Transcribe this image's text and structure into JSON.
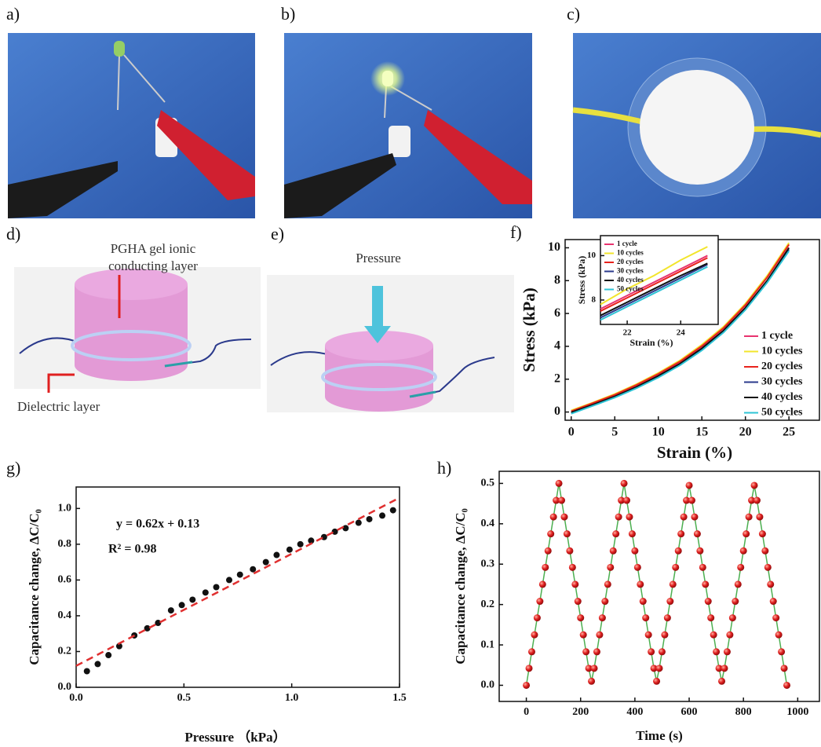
{
  "panel_labels": [
    "a)",
    "b)",
    "c)",
    "d)",
    "e)",
    "f)",
    "g)",
    "h)"
  ],
  "diagrams": {
    "d": {
      "labels": [
        "PGHA gel ionic",
        "conducting layer",
        "Dielectric layer"
      ]
    },
    "e": {
      "labels": [
        "Pressure"
      ]
    }
  },
  "chart_data": [
    {
      "type": "line",
      "xlabel": "Strain (%)",
      "ylabel": "Stress (kPa)",
      "x": [
        0,
        2.5,
        5,
        7.5,
        10,
        12.5,
        15,
        17.5,
        20,
        22.5,
        25
      ],
      "xlim": [
        -0.7,
        28.5
      ],
      "ylim": [
        -0.5,
        10.5
      ],
      "xticks": [
        0,
        5,
        10,
        15,
        20,
        25
      ],
      "yticks": [
        0,
        2,
        4,
        6,
        8,
        10
      ],
      "legend": "right",
      "series": [
        {
          "name": "1 cycle",
          "color": "#e8336f",
          "values": [
            0.05,
            0.52,
            1.02,
            1.63,
            2.3,
            3.05,
            4.0,
            5.1,
            6.5,
            8.2,
            10.2
          ]
        },
        {
          "name": "10 cycles",
          "color": "#f2e52c",
          "values": [
            0.1,
            0.58,
            1.1,
            1.7,
            2.38,
            3.15,
            4.1,
            5.2,
            6.6,
            8.3,
            10.3
          ]
        },
        {
          "name": "20 cycles",
          "color": "#e8231c",
          "values": [
            0.05,
            0.55,
            1.05,
            1.65,
            2.32,
            3.08,
            4.02,
            5.12,
            6.52,
            8.2,
            10.2
          ]
        },
        {
          "name": "30 cycles",
          "color": "#2b3a8c",
          "values": [
            -0.05,
            0.42,
            0.92,
            1.5,
            2.15,
            2.9,
            3.82,
            4.9,
            6.3,
            7.95,
            9.9
          ]
        },
        {
          "name": "40 cycles",
          "color": "#111111",
          "values": [
            -0.02,
            0.45,
            0.95,
            1.53,
            2.2,
            2.95,
            3.88,
            4.97,
            6.35,
            8.0,
            10.0
          ]
        },
        {
          "name": "50 cycles",
          "color": "#2ec4d6",
          "values": [
            -0.1,
            0.38,
            0.88,
            1.45,
            2.1,
            2.85,
            3.75,
            4.85,
            6.22,
            7.88,
            9.8
          ]
        }
      ]
    },
    {
      "type": "line",
      "xlabel": "Strain (%)",
      "ylabel": "Stress (kPa)",
      "x": [
        21,
        22,
        23,
        24,
        25
      ],
      "xlim": [
        21,
        25.4
      ],
      "ylim": [
        6.9,
        10.9
      ],
      "xticks": [
        22,
        24
      ],
      "yticks": [
        8,
        10
      ],
      "legend": "upper left",
      "series": [
        {
          "name": "1 cycle",
          "color": "#e8336f",
          "values": [
            7.6,
            8.2,
            8.8,
            9.4,
            10.0
          ]
        },
        {
          "name": "10 cycles",
          "color": "#f2e52c",
          "values": [
            7.8,
            8.5,
            9.1,
            9.8,
            10.4
          ]
        },
        {
          "name": "20 cycles",
          "color": "#e8231c",
          "values": [
            7.5,
            8.1,
            8.7,
            9.3,
            9.9
          ]
        },
        {
          "name": "30 cycles",
          "color": "#2b3a8c",
          "values": [
            7.2,
            7.8,
            8.4,
            9.0,
            9.6
          ]
        },
        {
          "name": "40 cycles",
          "color": "#111111",
          "values": [
            7.3,
            7.9,
            8.5,
            9.1,
            9.65
          ]
        },
        {
          "name": "50 cycles",
          "color": "#2ec4d6",
          "values": [
            7.1,
            7.7,
            8.3,
            8.9,
            9.5
          ]
        }
      ]
    },
    {
      "type": "scatter",
      "xlabel": "Pressure （kPa）",
      "ylabel": "Capacitance change, ΔC/C₀",
      "annotations": [
        "y = 0.62x + 0.13",
        "R² = 0.98"
      ],
      "xlim": [
        0,
        1.5
      ],
      "ylim": [
        0,
        1.12
      ],
      "xticks": [
        {
          "value": 0,
          "label": "0.0"
        },
        0.5,
        {
          "value": 1,
          "label": "1.0"
        },
        1.5
      ],
      "yticks": [
        {
          "value": 0,
          "label": "0.0"
        },
        0.2,
        0.4,
        0.6,
        0.8,
        {
          "value": 1,
          "label": "1.0"
        }
      ],
      "series": [
        {
          "color": "#111111",
          "x": [
            0.05,
            0.1,
            0.15,
            0.2,
            0.27,
            0.33,
            0.38,
            0.44,
            0.49,
            0.54,
            0.6,
            0.65,
            0.71,
            0.76,
            0.82,
            0.88,
            0.93,
            0.99,
            1.04,
            1.09,
            1.15,
            1.2,
            1.25,
            1.31,
            1.36,
            1.42,
            1.47
          ],
          "values": [
            0.09,
            0.13,
            0.18,
            0.23,
            0.29,
            0.33,
            0.36,
            0.43,
            0.46,
            0.49,
            0.53,
            0.56,
            0.6,
            0.63,
            0.66,
            0.7,
            0.74,
            0.77,
            0.8,
            0.82,
            0.84,
            0.87,
            0.89,
            0.92,
            0.94,
            0.96,
            0.99
          ]
        },
        {
          "color": "#e03030",
          "dash": true,
          "x": [
            0,
            1.5
          ],
          "values": [
            0.12,
            1.06
          ]
        }
      ]
    },
    {
      "type": "line",
      "xlabel": "Time (s)",
      "ylabel": "Capacitance change, ΔC/C₀",
      "xlim": [
        -100,
        1080
      ],
      "ylim": [
        -0.04,
        0.53
      ],
      "xticks": [
        0,
        200,
        400,
        600,
        800,
        1000
      ],
      "yticks": [
        {
          "value": 0,
          "label": "0.0"
        },
        0.1,
        0.2,
        0.3,
        0.4,
        0.5
      ],
      "markers": true,
      "x": [
        0,
        10,
        20,
        30,
        40,
        50,
        60,
        70,
        80,
        90,
        100,
        110,
        120,
        130,
        140,
        150,
        160,
        170,
        180,
        190,
        200,
        210,
        220,
        230,
        240,
        250,
        260,
        270,
        280,
        290,
        300,
        310,
        320,
        330,
        340,
        350,
        360,
        370,
        380,
        390,
        400,
        410,
        420,
        430,
        440,
        450,
        460,
        470,
        480,
        490,
        500,
        510,
        520,
        530,
        540,
        550,
        560,
        570,
        580,
        590,
        600,
        610,
        620,
        630,
        640,
        650,
        660,
        670,
        680,
        690,
        700,
        710,
        720,
        730,
        740,
        750,
        760,
        770,
        780,
        790,
        800,
        810,
        820,
        830,
        840,
        850,
        860,
        870,
        880,
        890,
        900,
        910,
        920,
        930,
        940,
        950,
        960
      ],
      "series": [
        {
          "color": "#4caf50",
          "marker_color": "#e02020",
          "values": [
            0,
            0.042,
            0.083,
            0.125,
            0.167,
            0.208,
            0.25,
            0.292,
            0.333,
            0.375,
            0.417,
            0.458,
            0.5,
            0.458,
            0.417,
            0.375,
            0.333,
            0.292,
            0.25,
            0.208,
            0.167,
            0.125,
            0.083,
            0.042,
            0.01,
            0.042,
            0.083,
            0.125,
            0.167,
            0.208,
            0.25,
            0.292,
            0.333,
            0.375,
            0.417,
            0.458,
            0.5,
            0.458,
            0.417,
            0.375,
            0.333,
            0.292,
            0.25,
            0.208,
            0.167,
            0.125,
            0.083,
            0.042,
            0.01,
            0.042,
            0.083,
            0.125,
            0.167,
            0.208,
            0.25,
            0.292,
            0.333,
            0.375,
            0.417,
            0.458,
            0.495,
            0.458,
            0.417,
            0.375,
            0.333,
            0.292,
            0.25,
            0.208,
            0.167,
            0.125,
            0.083,
            0.042,
            0.01,
            0.042,
            0.083,
            0.125,
            0.167,
            0.208,
            0.25,
            0.292,
            0.333,
            0.375,
            0.417,
            0.458,
            0.495,
            0.458,
            0.417,
            0.375,
            0.333,
            0.292,
            0.25,
            0.208,
            0.167,
            0.125,
            0.083,
            0.042,
            0
          ]
        }
      ]
    }
  ]
}
